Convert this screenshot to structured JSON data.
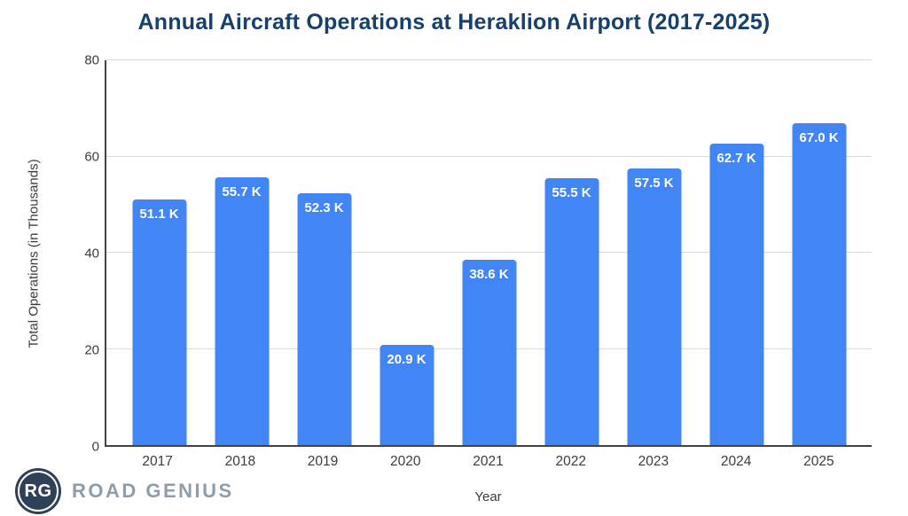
{
  "title": "Annual Aircraft Operations at Heraklion Airport (2017-2025)",
  "chart_data": {
    "type": "bar",
    "title": "Annual Aircraft Operations at Heraklion Airport (2017-2025)",
    "xlabel": "Year",
    "ylabel": "Total Operations (in Thousands)",
    "categories": [
      "2017",
      "2018",
      "2019",
      "2020",
      "2021",
      "2022",
      "2023",
      "2024",
      "2025"
    ],
    "values": [
      51.1,
      55.7,
      52.3,
      20.9,
      38.6,
      55.5,
      57.5,
      62.7,
      67.0
    ],
    "bar_labels": [
      "51.1 K",
      "55.7 K",
      "52.3 K",
      "20.9 K",
      "38.6 K",
      "55.5 K",
      "57.5 K",
      "62.7 K",
      "67.0 K"
    ],
    "units": "thousands of operations",
    "ylim": [
      0,
      80
    ],
    "yticks": [
      0,
      20,
      40,
      60,
      80
    ],
    "grid": true,
    "legend": "none"
  },
  "style": {
    "background": "#ffffff",
    "bar_color": "#4285f4",
    "bar_label_color": "#ffffff",
    "title_color": "#17406d",
    "grid_color": "#dadada",
    "axis_line_color": "#424242",
    "tick_label_color": "#3c3c3c"
  },
  "branding": {
    "monogram": "RG",
    "name": "ROAD GENIUS",
    "circle_color": "#2e4156",
    "text_color": "#8d9dab"
  }
}
